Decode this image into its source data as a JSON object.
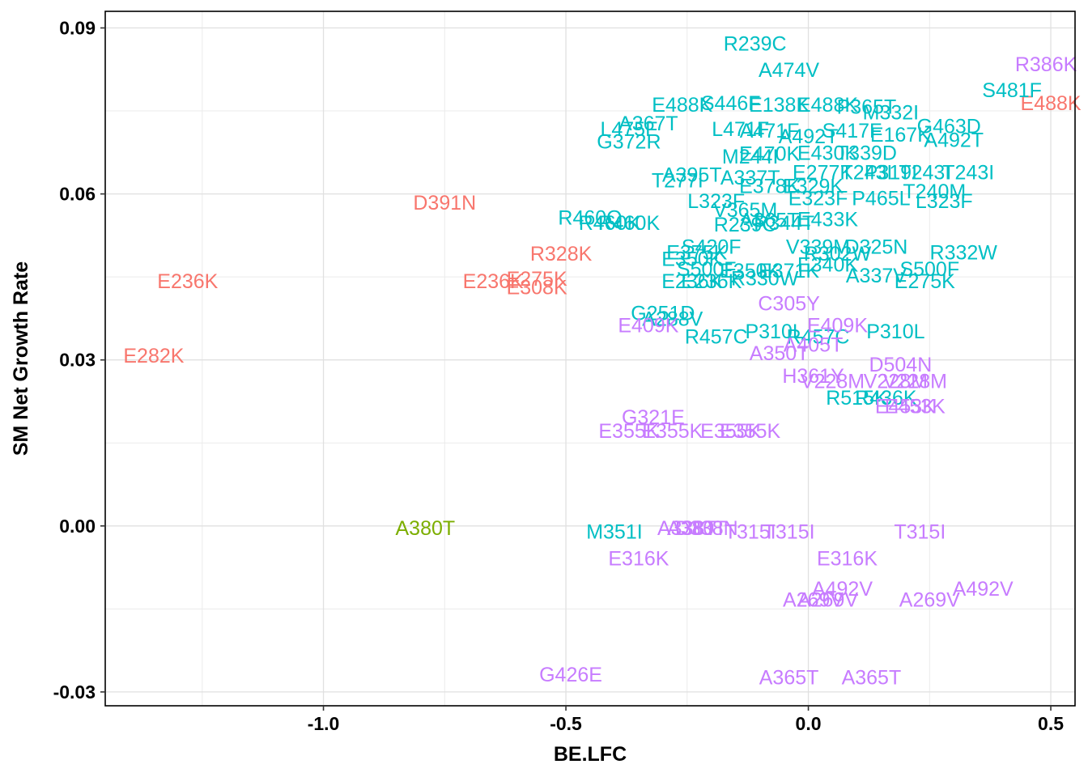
{
  "chart_data": {
    "type": "scatter",
    "xlabel": "BE.LFC",
    "ylabel": "SM Net Growth Rate",
    "xlim": [
      -1.45,
      0.55
    ],
    "ylim": [
      -0.0325,
      0.093
    ],
    "x_ticks": [
      -1.0,
      -0.5,
      0.0,
      0.5
    ],
    "x_tick_labels": [
      "-1.0",
      "-0.5",
      "0.0",
      "0.5"
    ],
    "y_ticks": [
      -0.03,
      0.0,
      0.03,
      0.06,
      0.09
    ],
    "y_tick_labels": [
      "-0.03",
      "0.00",
      "0.03",
      "0.06",
      "0.09"
    ],
    "x_minor_grid": [
      -1.25,
      -0.75,
      -0.25,
      0.25
    ],
    "y_minor_grid": [
      -0.015,
      0.015,
      0.045,
      0.075
    ],
    "grid": true,
    "legend": "none",
    "series": [
      {
        "name": "red",
        "color": "#F8766D",
        "points": [
          {
            "label": "R386K",
            "x": 0.49,
            "y": 0.0835,
            "color": "#C77CFF"
          },
          {
            "label": "E488K",
            "x": 0.5,
            "y": 0.0765
          },
          {
            "label": "D391N",
            "x": -0.75,
            "y": 0.0585
          },
          {
            "label": "R328K",
            "x": -0.51,
            "y": 0.0493
          },
          {
            "label": "E236K",
            "x": -1.28,
            "y": 0.0443
          },
          {
            "label": "E236K",
            "x": -0.65,
            "y": 0.0443
          },
          {
            "label": "E275K",
            "x": -0.56,
            "y": 0.0447
          },
          {
            "label": "E308K",
            "x": -0.56,
            "y": 0.0432
          },
          {
            "label": "E282K",
            "x": -1.35,
            "y": 0.0308
          }
        ]
      },
      {
        "name": "green",
        "color": "#7CAE00",
        "points": [
          {
            "label": "A380T",
            "x": -0.79,
            "y": -0.0003
          }
        ]
      },
      {
        "name": "teal",
        "color": "#00BFC4",
        "points": [
          {
            "label": "R239C",
            "x": -0.11,
            "y": 0.0872
          },
          {
            "label": "A474V",
            "x": -0.04,
            "y": 0.0825
          },
          {
            "label": "S481F",
            "x": 0.42,
            "y": 0.0788
          },
          {
            "label": "E488K",
            "x": -0.26,
            "y": 0.0762
          },
          {
            "label": "S446F",
            "x": -0.16,
            "y": 0.0765
          },
          {
            "label": "E138K",
            "x": -0.06,
            "y": 0.0762
          },
          {
            "label": "E488K",
            "x": 0.04,
            "y": 0.0762
          },
          {
            "label": "P365T",
            "x": 0.12,
            "y": 0.0758
          },
          {
            "label": "M332I",
            "x": 0.17,
            "y": 0.0748
          },
          {
            "label": "A367T",
            "x": -0.33,
            "y": 0.0728
          },
          {
            "label": "L475F",
            "x": -0.37,
            "y": 0.0718
          },
          {
            "label": "L471F",
            "x": -0.14,
            "y": 0.0718
          },
          {
            "label": "A471F",
            "x": -0.08,
            "y": 0.0715
          },
          {
            "label": "S417F",
            "x": 0.09,
            "y": 0.0715
          },
          {
            "label": "G463D",
            "x": 0.29,
            "y": 0.0723
          },
          {
            "label": "E167K",
            "x": 0.19,
            "y": 0.0708
          },
          {
            "label": "A492T",
            "x": 0.3,
            "y": 0.0698
          },
          {
            "label": "A492T",
            "x": 0.0,
            "y": 0.0705
          },
          {
            "label": "G372R",
            "x": -0.37,
            "y": 0.0695
          },
          {
            "label": "M244I",
            "x": -0.12,
            "y": 0.0668
          },
          {
            "label": "E470K",
            "x": -0.08,
            "y": 0.0673
          },
          {
            "label": "E430K",
            "x": 0.04,
            "y": 0.0675
          },
          {
            "label": "T339D",
            "x": 0.12,
            "y": 0.0675
          },
          {
            "label": "A395T",
            "x": -0.24,
            "y": 0.0635
          },
          {
            "label": "T277I",
            "x": -0.27,
            "y": 0.0625
          },
          {
            "label": "A337T",
            "x": -0.12,
            "y": 0.063
          },
          {
            "label": "E277K",
            "x": 0.03,
            "y": 0.064
          },
          {
            "label": "T243I",
            "x": 0.12,
            "y": 0.064
          },
          {
            "label": "P319I",
            "x": 0.17,
            "y": 0.064
          },
          {
            "label": "T243I",
            "x": 0.24,
            "y": 0.064
          },
          {
            "label": "T243I",
            "x": 0.33,
            "y": 0.064
          },
          {
            "label": "E378K",
            "x": -0.08,
            "y": 0.0615
          },
          {
            "label": "E329K",
            "x": 0.01,
            "y": 0.0615
          },
          {
            "label": "T240M",
            "x": 0.26,
            "y": 0.0605
          },
          {
            "label": "L323F",
            "x": -0.19,
            "y": 0.0588
          },
          {
            "label": "E323F",
            "x": 0.02,
            "y": 0.0593
          },
          {
            "label": "P465L",
            "x": 0.15,
            "y": 0.0593
          },
          {
            "label": "L323F",
            "x": 0.28,
            "y": 0.0588
          },
          {
            "label": "V365M",
            "x": -0.13,
            "y": 0.0572
          },
          {
            "label": "R460Q",
            "x": -0.45,
            "y": 0.0558
          },
          {
            "label": "R460K",
            "x": -0.41,
            "y": 0.0548
          },
          {
            "label": "R460K",
            "x": -0.37,
            "y": 0.0548
          },
          {
            "label": "A365T",
            "x": -0.08,
            "y": 0.0553
          },
          {
            "label": "E433K",
            "x": 0.04,
            "y": 0.0555
          },
          {
            "label": "R239C",
            "x": -0.13,
            "y": 0.0545
          },
          {
            "label": "R344T",
            "x": -0.05,
            "y": 0.0548
          },
          {
            "label": "S420F",
            "x": -0.2,
            "y": 0.0505
          },
          {
            "label": "E375K",
            "x": -0.23,
            "y": 0.0495
          },
          {
            "label": "E350K",
            "x": -0.24,
            "y": 0.0483
          },
          {
            "label": "V339M",
            "x": 0.02,
            "y": 0.0505
          },
          {
            "label": "D325N",
            "x": 0.14,
            "y": 0.0505
          },
          {
            "label": "R302W",
            "x": 0.06,
            "y": 0.0493
          },
          {
            "label": "R332W",
            "x": 0.32,
            "y": 0.0495
          },
          {
            "label": "S500F",
            "x": -0.21,
            "y": 0.0465
          },
          {
            "label": "E350K",
            "x": -0.12,
            "y": 0.0462
          },
          {
            "label": "E371K",
            "x": -0.04,
            "y": 0.0462
          },
          {
            "label": "E340K",
            "x": 0.04,
            "y": 0.0473
          },
          {
            "label": "S500F",
            "x": 0.25,
            "y": 0.0465
          },
          {
            "label": "E236K",
            "x": -0.24,
            "y": 0.0443
          },
          {
            "label": "E236K",
            "x": -0.2,
            "y": 0.0443
          },
          {
            "label": "R330W",
            "x": -0.09,
            "y": 0.0448
          },
          {
            "label": "A337V",
            "x": 0.14,
            "y": 0.0453
          },
          {
            "label": "E275K",
            "x": 0.24,
            "y": 0.0443
          },
          {
            "label": "G251D",
            "x": -0.3,
            "y": 0.0385
          },
          {
            "label": "A288V",
            "x": -0.28,
            "y": 0.0375
          },
          {
            "label": "R457C",
            "x": -0.19,
            "y": 0.0343
          },
          {
            "label": "P310L",
            "x": -0.07,
            "y": 0.0352
          },
          {
            "label": "R457C",
            "x": 0.02,
            "y": 0.0343
          },
          {
            "label": "P310L",
            "x": 0.18,
            "y": 0.0352
          },
          {
            "label": "R515K",
            "x": 0.1,
            "y": 0.0232
          },
          {
            "label": "R436K",
            "x": 0.16,
            "y": 0.0232
          }
        ]
      },
      {
        "name": "purple",
        "color": "#C77CFF",
        "points": [
          {
            "label": "C305Y",
            "x": -0.04,
            "y": 0.0403
          },
          {
            "label": "E409K",
            "x": -0.33,
            "y": 0.0363
          },
          {
            "label": "E409K",
            "x": 0.06,
            "y": 0.0363
          },
          {
            "label": "A405T",
            "x": 0.01,
            "y": 0.0328
          },
          {
            "label": "A350T",
            "x": -0.06,
            "y": 0.0313
          },
          {
            "label": "D504N",
            "x": 0.19,
            "y": 0.0292
          },
          {
            "label": "H361Y",
            "x": 0.01,
            "y": 0.0272
          },
          {
            "label": "V228M",
            "x": 0.05,
            "y": 0.0262
          },
          {
            "label": "V228M",
            "x": 0.18,
            "y": 0.0262
          },
          {
            "label": "V228M",
            "x": 0.22,
            "y": 0.0262
          },
          {
            "label": "E453K",
            "x": 0.2,
            "y": 0.0217
          },
          {
            "label": "E453K",
            "x": 0.22,
            "y": 0.0217
          },
          {
            "label": "G321E",
            "x": -0.32,
            "y": 0.0197
          },
          {
            "label": "E355K",
            "x": -0.37,
            "y": 0.0172
          },
          {
            "label": "E355K",
            "x": -0.28,
            "y": 0.0172
          },
          {
            "label": "E355K",
            "x": -0.16,
            "y": 0.0172
          },
          {
            "label": "E355K",
            "x": -0.12,
            "y": 0.0172
          },
          {
            "label": "M351I",
            "x": -0.4,
            "y": -0.001,
            "color": "#00BFC4"
          },
          {
            "label": "A338T",
            "x": -0.25,
            "y": -0.0003
          },
          {
            "label": "D338N",
            "x": -0.21,
            "y": -0.0003
          },
          {
            "label": "A380T",
            "x": -0.23,
            "y": -0.0003
          },
          {
            "label": "T315I",
            "x": -0.12,
            "y": -0.001
          },
          {
            "label": "T315I",
            "x": -0.04,
            "y": -0.001
          },
          {
            "label": "T315I",
            "x": 0.23,
            "y": -0.001
          },
          {
            "label": "E316K",
            "x": -0.35,
            "y": -0.0058
          },
          {
            "label": "E316K",
            "x": 0.08,
            "y": -0.0058
          },
          {
            "label": "A492V",
            "x": 0.07,
            "y": -0.0113
          },
          {
            "label": "A492V",
            "x": 0.36,
            "y": -0.0113
          },
          {
            "label": "A269V",
            "x": 0.01,
            "y": -0.0133
          },
          {
            "label": "A269V",
            "x": 0.04,
            "y": -0.0133
          },
          {
            "label": "A269V",
            "x": 0.25,
            "y": -0.0133
          },
          {
            "label": "G426E",
            "x": -0.49,
            "y": -0.0268
          },
          {
            "label": "A365T",
            "x": -0.04,
            "y": -0.0273
          },
          {
            "label": "A365T",
            "x": 0.13,
            "y": -0.0273
          }
        ]
      }
    ]
  }
}
